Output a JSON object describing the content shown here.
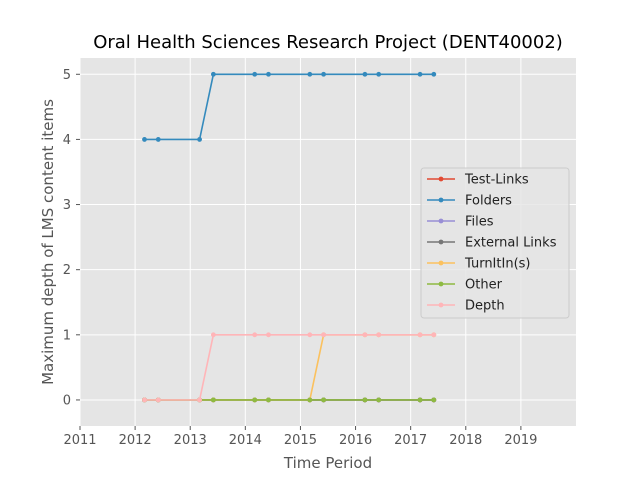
{
  "chart_data": {
    "type": "line",
    "title": "Oral Health Sciences Research Project (DENT40002)",
    "xlabel": "Time Period",
    "ylabel": "Maximum depth of LMS content items",
    "xlim": [
      2011,
      2020
    ],
    "ylim": [
      -0.4,
      5.25
    ],
    "xticks": [
      "2011",
      "2012",
      "2013",
      "2014",
      "2015",
      "2016",
      "2017",
      "2018",
      "2019"
    ],
    "yticks": [
      "0",
      "1",
      "2",
      "3",
      "4",
      "5"
    ],
    "grid": true,
    "legend_position": "right",
    "x": [
      2012.17,
      2012.42,
      2013.17,
      2013.42,
      2014.17,
      2014.42,
      2015.17,
      2015.42,
      2016.17,
      2016.42,
      2017.17,
      2017.42
    ],
    "series": [
      {
        "name": "Test-Links",
        "color": "#e24a33",
        "values": [
          0,
          0,
          0,
          0,
          0,
          0,
          0,
          0,
          0,
          0,
          0,
          0
        ]
      },
      {
        "name": "Folders",
        "color": "#348abd",
        "values": [
          4,
          4,
          4,
          5,
          5,
          5,
          5,
          5,
          5,
          5,
          5,
          5
        ]
      },
      {
        "name": "Files",
        "color": "#988ed5",
        "values": [
          0,
          0,
          0,
          0,
          0,
          0,
          0,
          0,
          0,
          0,
          0,
          0
        ]
      },
      {
        "name": "External Links",
        "color": "#777777",
        "values": [
          0,
          0,
          0,
          0,
          0,
          0,
          0,
          0,
          0,
          0,
          0,
          0
        ]
      },
      {
        "name": "TurnItIn(s)",
        "color": "#fbc15e",
        "values": [
          0,
          0,
          0,
          0,
          0,
          0,
          0,
          1,
          1,
          1,
          1,
          1
        ]
      },
      {
        "name": "Other",
        "color": "#8eba42",
        "values": [
          0,
          0,
          0,
          0,
          0,
          0,
          0,
          0,
          0,
          0,
          0,
          0
        ]
      },
      {
        "name": "Depth",
        "color": "#ffb5b8",
        "values": [
          0,
          0,
          0,
          1,
          1,
          1,
          1,
          1,
          1,
          1,
          1,
          1
        ]
      }
    ]
  }
}
